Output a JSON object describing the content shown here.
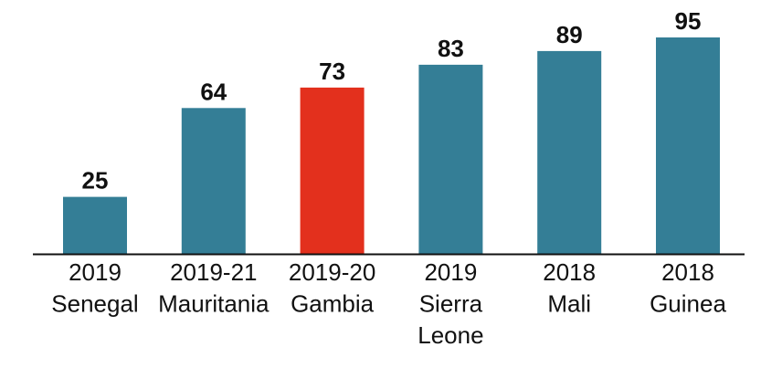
{
  "chart_data": {
    "type": "bar",
    "title": "",
    "xlabel": "",
    "ylabel": "",
    "ylim": [
      0,
      100
    ],
    "grid": false,
    "legend": "none",
    "categories": [
      [
        "2019",
        "Senegal"
      ],
      [
        "2019-21",
        "Mauritania"
      ],
      [
        "2019-20",
        "Gambia"
      ],
      [
        "2019",
        "Sierra",
        "Leone"
      ],
      [
        "2018",
        "Mali"
      ],
      [
        "2018",
        "Guinea"
      ]
    ],
    "values": [
      25,
      64,
      73,
      83,
      89,
      95
    ],
    "value_labels": [
      "25",
      "64",
      "73",
      "83",
      "89",
      "95"
    ],
    "colors": {
      "default": "#347e96",
      "highlight": "#e3301d",
      "axis": "#111111"
    },
    "highlight_index": 2
  }
}
